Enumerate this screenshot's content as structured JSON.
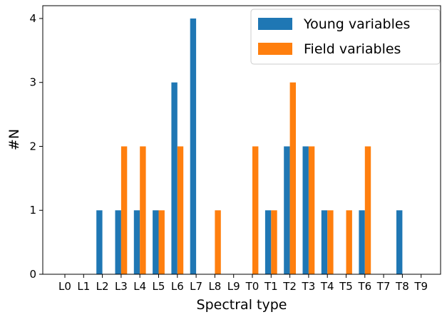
{
  "chart_data": {
    "type": "bar",
    "xlabel": "Spectral type",
    "ylabel": "#N",
    "ylim": [
      0,
      4.2
    ],
    "yticks": [
      0,
      1,
      2,
      3,
      4
    ],
    "grid": false,
    "legend_position": "top-right",
    "categories": [
      "L0",
      "L1",
      "L2",
      "L3",
      "L4",
      "L5",
      "L6",
      "L7",
      "L8",
      "L9",
      "T0",
      "T1",
      "T2",
      "T3",
      "T4",
      "T5",
      "T6",
      "T7",
      "T8",
      "T9"
    ],
    "series": [
      {
        "name": "Young variables",
        "color": "#1f77b4",
        "values": [
          0,
          0,
          1,
          1,
          1,
          1,
          3,
          4,
          0,
          0,
          0,
          1,
          2,
          2,
          1,
          0,
          1,
          0,
          1,
          0
        ]
      },
      {
        "name": "Field variables",
        "color": "#ff7f0e",
        "values": [
          0,
          0,
          0,
          2,
          2,
          1,
          2,
          0,
          1,
          0,
          2,
          1,
          3,
          2,
          1,
          1,
          2,
          0,
          0,
          0
        ]
      }
    ]
  }
}
